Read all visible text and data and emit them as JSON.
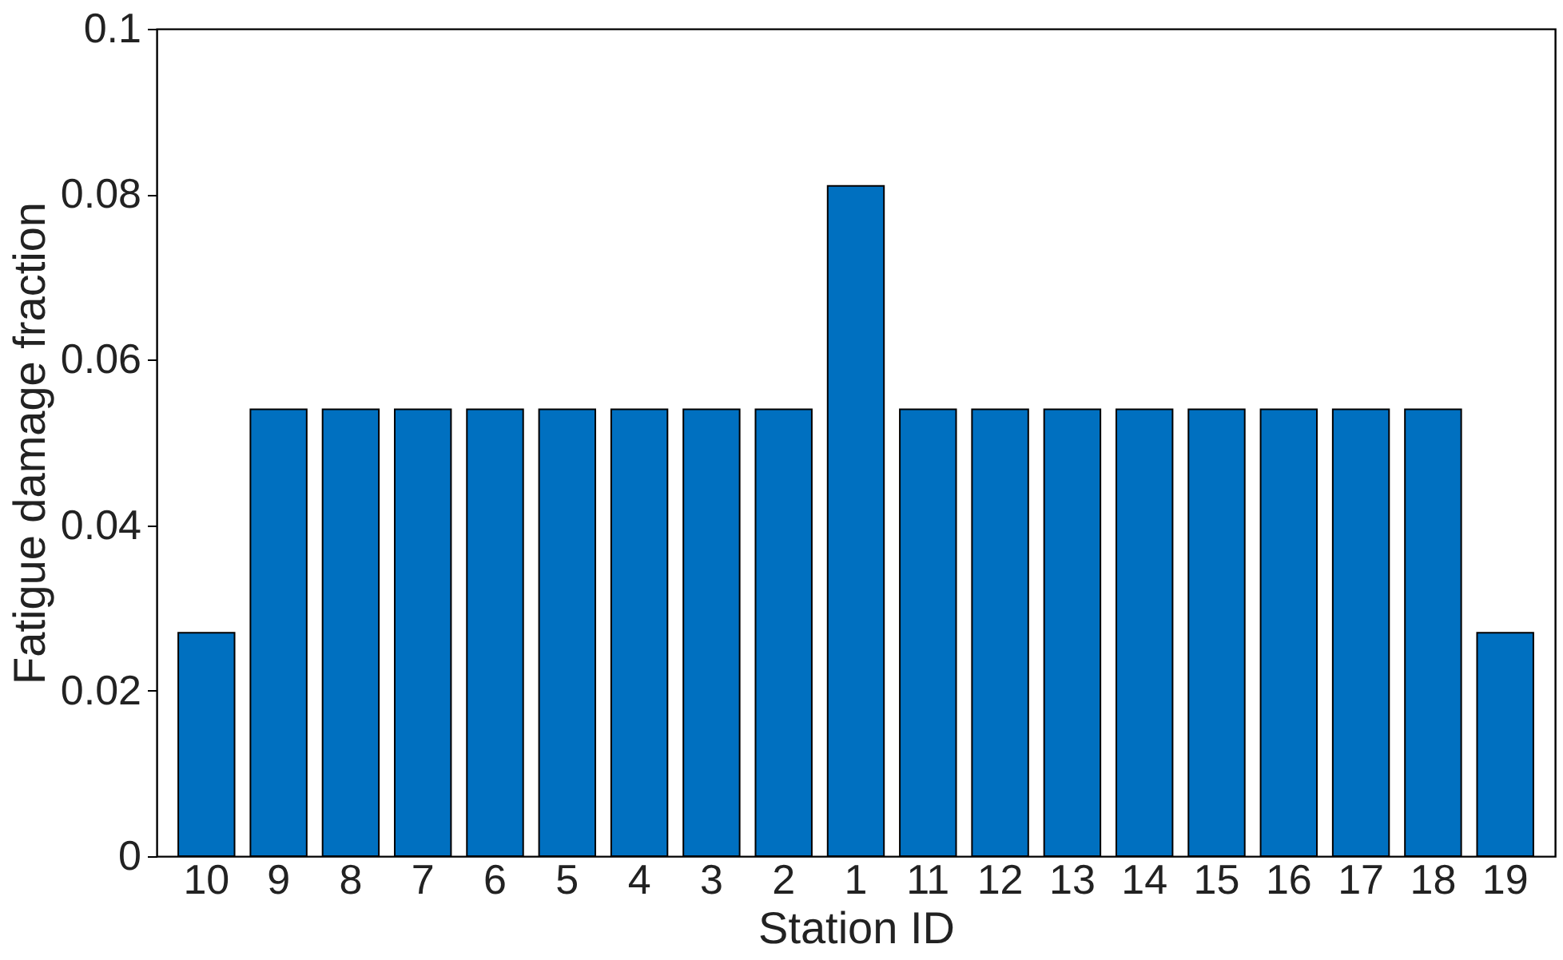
{
  "chart_data": {
    "type": "bar",
    "xlabel": "Station ID",
    "ylabel": "Fatigue damage fraction",
    "categories": [
      "10",
      "9",
      "8",
      "7",
      "6",
      "5",
      "4",
      "3",
      "2",
      "1",
      "11",
      "12",
      "13",
      "14",
      "15",
      "16",
      "17",
      "18",
      "19"
    ],
    "values": [
      0.027,
      0.054,
      0.054,
      0.054,
      0.054,
      0.054,
      0.054,
      0.054,
      0.054,
      0.081,
      0.054,
      0.054,
      0.054,
      0.054,
      0.054,
      0.054,
      0.054,
      0.054,
      0.027
    ],
    "color": "#0070c0",
    "ylim": [
      0,
      0.1
    ],
    "yticks": [
      0,
      0.02,
      0.04,
      0.06,
      0.08,
      0.1
    ],
    "grid": false
  }
}
